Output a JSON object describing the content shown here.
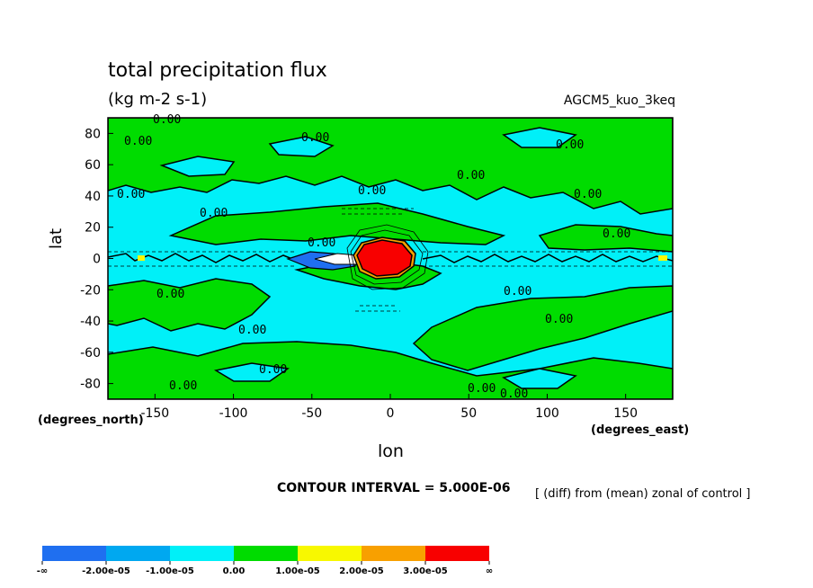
{
  "chart_data": {
    "type": "heatmap",
    "title": "total precipitation flux",
    "subtitle": "(kg m-2 s-1)",
    "annotation_model": "AGCM5_kuo_3keq",
    "xlabel": "lon",
    "ylabel": "lat",
    "xunits": "(degrees_east)",
    "yunits": "(degrees_north)",
    "xlim": [
      -180,
      180
    ],
    "ylim": [
      -90,
      90
    ],
    "xticks": [
      -150,
      -100,
      -50,
      0,
      50,
      100,
      150
    ],
    "yticks": [
      80,
      60,
      40,
      20,
      0,
      -20,
      -40,
      -60,
      -80
    ],
    "contour_interval": "CONTOUR INTERVAL = 5.000E-06",
    "note": "[ (diff) from (mean) zonal of control ]",
    "contour_labels": [
      "0.00"
    ],
    "levels": [
      {
        "range": "-∞ to -2.00e-05",
        "color": "#1f6ff0"
      },
      {
        "range": "-2.00e-05 to -1.00e-05",
        "color": "#00a8f0"
      },
      {
        "range": "-1.00e-05 to 0.00",
        "color": "#00f0f8"
      },
      {
        "range": "0.00 to 1.00e-05",
        "color": "#00dc00"
      },
      {
        "range": "1.00e-05 to 2.00e-05",
        "color": "#f8f800"
      },
      {
        "range": "2.00e-05 to 3.00e-05",
        "color": "#f8a000"
      },
      {
        "range": "3.00e-05 to ∞",
        "color": "#f80000"
      }
    ],
    "colorbar_labels": [
      "-∞",
      "-2.00e-05",
      "-1.00e-05",
      "0.00",
      "1.00e-05",
      "2.00e-05",
      "3.00e-05",
      "∞"
    ],
    "features": [
      {
        "name": "positive anomaly maximum",
        "lon": -5,
        "lat": 1,
        "level": "3.00e-05 to ∞"
      },
      {
        "name": "negative anomaly minimum",
        "lon": -40,
        "lat": 0,
        "level": "-∞ to -2.00e-05"
      }
    ],
    "grid": false
  }
}
